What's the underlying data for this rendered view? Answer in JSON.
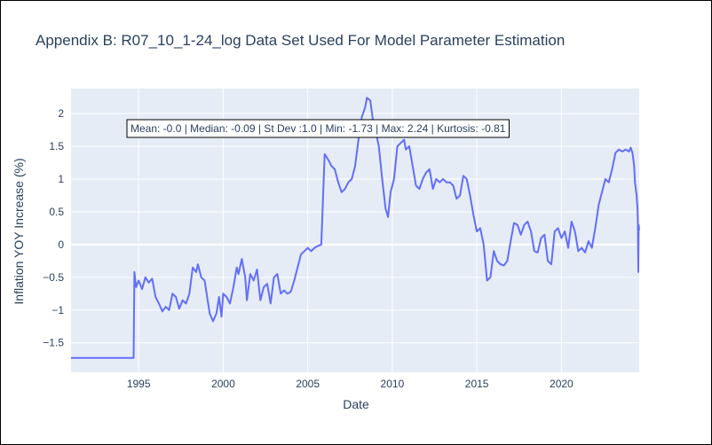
{
  "chart_data": {
    "type": "line",
    "title": "Appendix B: R07_10_1-24_log Data Set Used For Model Parameter Estimation",
    "xlabel": "Date",
    "ylabel": "Inflation YOY Increase (%)",
    "xlim": [
      1991.0,
      2024.6
    ],
    "ylim": [
      -1.95,
      2.38
    ],
    "x_ticks": [
      {
        "value": 1995,
        "label": "1995"
      },
      {
        "value": 2000,
        "label": "2000"
      },
      {
        "value": 2005,
        "label": "2005"
      },
      {
        "value": 2010,
        "label": "2010"
      },
      {
        "value": 2015,
        "label": "2015"
      },
      {
        "value": 2020,
        "label": "2020"
      }
    ],
    "y_ticks": [
      {
        "value": 2,
        "label": "2"
      },
      {
        "value": 1.5,
        "label": "1.5"
      },
      {
        "value": 1,
        "label": "1"
      },
      {
        "value": 0.5,
        "label": "0.5"
      },
      {
        "value": 0,
        "label": "0"
      },
      {
        "value": -0.5,
        "label": "−0.5"
      },
      {
        "value": -1,
        "label": "−1"
      },
      {
        "value": -1.5,
        "label": "−1.5"
      }
    ],
    "grid": true,
    "annotation": "Mean: -0.0 | Median: -0.09 | St Dev :1.0 | Min: -1.73 | Max: 2.24 | Kurtosis: -0.81",
    "colors": {
      "line": "#636efa",
      "plot_bg": "#e5ecf6",
      "grid": "#ffffff",
      "text": "#2a3f5f"
    },
    "series": [
      {
        "points": [
          [
            1991.0,
            -1.73
          ],
          [
            1994.7,
            -1.73
          ],
          [
            1994.75,
            -0.42
          ],
          [
            1994.85,
            -0.65
          ],
          [
            1995.0,
            -0.55
          ],
          [
            1995.2,
            -0.68
          ],
          [
            1995.4,
            -0.5
          ],
          [
            1995.6,
            -0.58
          ],
          [
            1995.8,
            -0.52
          ],
          [
            1996.0,
            -0.8
          ],
          [
            1996.2,
            -0.9
          ],
          [
            1996.4,
            -1.02
          ],
          [
            1996.6,
            -0.95
          ],
          [
            1996.8,
            -1.0
          ],
          [
            1997.0,
            -0.75
          ],
          [
            1997.2,
            -0.8
          ],
          [
            1997.4,
            -0.98
          ],
          [
            1997.6,
            -0.85
          ],
          [
            1997.8,
            -0.9
          ],
          [
            1998.0,
            -0.75
          ],
          [
            1998.2,
            -0.35
          ],
          [
            1998.4,
            -0.42
          ],
          [
            1998.5,
            -0.3
          ],
          [
            1998.7,
            -0.5
          ],
          [
            1998.9,
            -0.55
          ],
          [
            1999.2,
            -1.05
          ],
          [
            1999.4,
            -1.17
          ],
          [
            1999.6,
            -1.05
          ],
          [
            1999.75,
            -0.8
          ],
          [
            1999.9,
            -1.1
          ],
          [
            2000.0,
            -0.75
          ],
          [
            2000.2,
            -0.8
          ],
          [
            2000.4,
            -0.9
          ],
          [
            2000.6,
            -0.65
          ],
          [
            2000.8,
            -0.35
          ],
          [
            2000.9,
            -0.45
          ],
          [
            2001.1,
            -0.22
          ],
          [
            2001.3,
            -0.5
          ],
          [
            2001.4,
            -0.85
          ],
          [
            2001.6,
            -0.45
          ],
          [
            2001.8,
            -0.55
          ],
          [
            2002.0,
            -0.38
          ],
          [
            2002.2,
            -0.85
          ],
          [
            2002.4,
            -0.65
          ],
          [
            2002.6,
            -0.6
          ],
          [
            2002.8,
            -0.9
          ],
          [
            2003.0,
            -0.5
          ],
          [
            2003.2,
            -0.45
          ],
          [
            2003.4,
            -0.75
          ],
          [
            2003.6,
            -0.7
          ],
          [
            2003.8,
            -0.75
          ],
          [
            2004.0,
            -0.72
          ],
          [
            2004.2,
            -0.55
          ],
          [
            2004.4,
            -0.35
          ],
          [
            2004.6,
            -0.15
          ],
          [
            2004.8,
            -0.1
          ],
          [
            2005.0,
            -0.05
          ],
          [
            2005.2,
            -0.1
          ],
          [
            2005.4,
            -0.05
          ],
          [
            2005.6,
            -0.02
          ],
          [
            2005.8,
            0.0
          ],
          [
            2006.0,
            1.38
          ],
          [
            2006.2,
            1.3
          ],
          [
            2006.4,
            1.2
          ],
          [
            2006.6,
            1.15
          ],
          [
            2006.8,
            0.95
          ],
          [
            2007.0,
            0.8
          ],
          [
            2007.2,
            0.85
          ],
          [
            2007.4,
            0.95
          ],
          [
            2007.6,
            1.0
          ],
          [
            2007.8,
            1.2
          ],
          [
            2008.0,
            1.6
          ],
          [
            2008.2,
            1.95
          ],
          [
            2008.4,
            2.1
          ],
          [
            2008.5,
            2.24
          ],
          [
            2008.7,
            2.2
          ],
          [
            2008.85,
            1.9
          ],
          [
            2009.0,
            1.75
          ],
          [
            2009.2,
            1.5
          ],
          [
            2009.4,
            1.0
          ],
          [
            2009.6,
            0.55
          ],
          [
            2009.75,
            0.42
          ],
          [
            2009.9,
            0.8
          ],
          [
            2010.1,
            1.0
          ],
          [
            2010.3,
            1.5
          ],
          [
            2010.5,
            1.55
          ],
          [
            2010.7,
            1.6
          ],
          [
            2010.8,
            1.45
          ],
          [
            2011.0,
            1.5
          ],
          [
            2011.2,
            1.2
          ],
          [
            2011.4,
            0.9
          ],
          [
            2011.6,
            0.85
          ],
          [
            2011.8,
            1.0
          ],
          [
            2012.0,
            1.1
          ],
          [
            2012.2,
            1.15
          ],
          [
            2012.4,
            0.85
          ],
          [
            2012.6,
            1.0
          ],
          [
            2012.8,
            0.95
          ],
          [
            2013.0,
            1.0
          ],
          [
            2013.2,
            0.95
          ],
          [
            2013.4,
            0.95
          ],
          [
            2013.6,
            0.9
          ],
          [
            2013.8,
            0.7
          ],
          [
            2014.0,
            0.75
          ],
          [
            2014.2,
            1.05
          ],
          [
            2014.4,
            1.0
          ],
          [
            2014.6,
            0.75
          ],
          [
            2014.8,
            0.45
          ],
          [
            2015.0,
            0.2
          ],
          [
            2015.2,
            0.25
          ],
          [
            2015.4,
            0.0
          ],
          [
            2015.6,
            -0.55
          ],
          [
            2015.8,
            -0.5
          ],
          [
            2016.0,
            -0.1
          ],
          [
            2016.2,
            -0.25
          ],
          [
            2016.4,
            -0.3
          ],
          [
            2016.6,
            -0.32
          ],
          [
            2016.8,
            -0.25
          ],
          [
            2017.0,
            0.05
          ],
          [
            2017.2,
            0.33
          ],
          [
            2017.4,
            0.3
          ],
          [
            2017.6,
            0.15
          ],
          [
            2017.8,
            0.3
          ],
          [
            2018.0,
            0.35
          ],
          [
            2018.2,
            0.2
          ],
          [
            2018.4,
            -0.1
          ],
          [
            2018.6,
            -0.12
          ],
          [
            2018.8,
            0.1
          ],
          [
            2019.0,
            0.15
          ],
          [
            2019.2,
            -0.25
          ],
          [
            2019.4,
            -0.3
          ],
          [
            2019.6,
            0.2
          ],
          [
            2019.8,
            0.25
          ],
          [
            2020.0,
            0.1
          ],
          [
            2020.2,
            0.2
          ],
          [
            2020.4,
            -0.05
          ],
          [
            2020.6,
            0.35
          ],
          [
            2020.8,
            0.2
          ],
          [
            2021.0,
            -0.1
          ],
          [
            2021.2,
            -0.05
          ],
          [
            2021.4,
            -0.12
          ],
          [
            2021.6,
            0.05
          ],
          [
            2021.8,
            -0.05
          ],
          [
            2022.0,
            0.25
          ],
          [
            2022.2,
            0.6
          ],
          [
            2022.4,
            0.8
          ],
          [
            2022.6,
            1.0
          ],
          [
            2022.8,
            0.95
          ],
          [
            2023.0,
            1.15
          ],
          [
            2023.2,
            1.4
          ],
          [
            2023.4,
            1.45
          ],
          [
            2023.6,
            1.42
          ],
          [
            2023.8,
            1.45
          ],
          [
            2024.0,
            1.42
          ],
          [
            2024.1,
            1.48
          ],
          [
            2024.2,
            1.4
          ],
          [
            2024.3,
            1.2
          ],
          [
            2024.35,
            0.95
          ],
          [
            2024.4,
            0.85
          ],
          [
            2024.45,
            0.75
          ],
          [
            2024.5,
            0.55
          ],
          [
            2024.52,
            0.35
          ],
          [
            2024.55,
            -0.42
          ],
          [
            2024.57,
            0.3
          ],
          [
            2024.6,
            0.22
          ]
        ]
      }
    ]
  }
}
